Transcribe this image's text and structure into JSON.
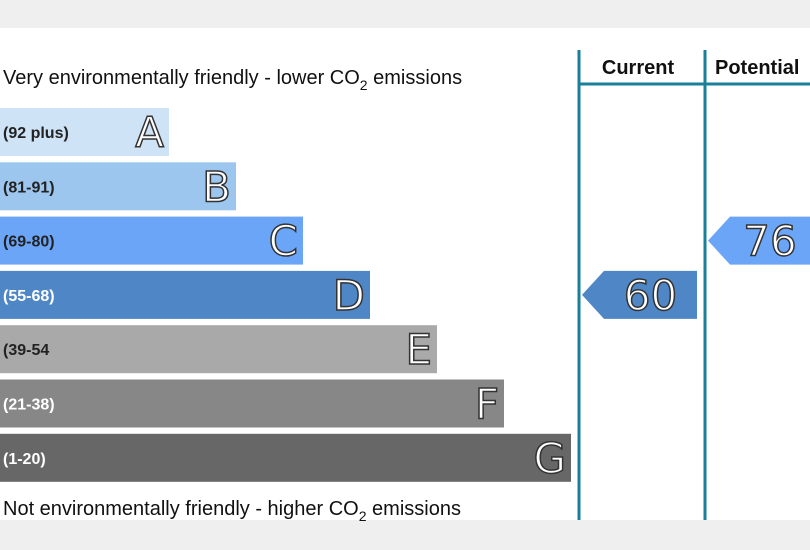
{
  "top_text": {
    "before": "Very environmentally friendly - lower CO",
    "sub": "2",
    "after": " emissions"
  },
  "bottom_text": {
    "before": "Not environmentally friendly - higher CO",
    "sub": "2",
    "after": " emissions"
  },
  "bands": [
    {
      "letter": "A",
      "range": "(92 plus)",
      "color": "#cfe3f6"
    },
    {
      "letter": "B",
      "range": "(81-91)",
      "color": "#9cc6ee"
    },
    {
      "letter": "C",
      "range": "(69-80)",
      "color": "#6ba5f7"
    },
    {
      "letter": "D",
      "range": "(55-68)",
      "color": "#4f86c6"
    },
    {
      "letter": "E",
      "range": "(39-54",
      "color": "#a9a9a9"
    },
    {
      "letter": "F",
      "range": "(21-38)",
      "color": "#878787"
    },
    {
      "letter": "G",
      "range": "(1-20)",
      "color": "#676767"
    }
  ],
  "current": {
    "header": "Current",
    "value": 60
  },
  "potential": {
    "header": "Potential",
    "value": 76
  }
}
